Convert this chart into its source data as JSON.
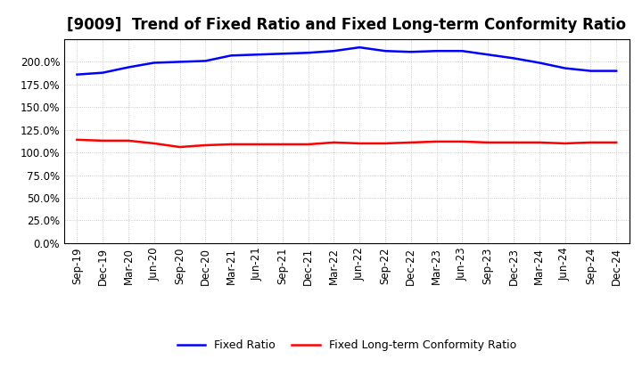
{
  "title": "[9009]  Trend of Fixed Ratio and Fixed Long-term Conformity Ratio",
  "x_labels": [
    "Sep-19",
    "Dec-19",
    "Mar-20",
    "Jun-20",
    "Sep-20",
    "Dec-20",
    "Mar-21",
    "Jun-21",
    "Sep-21",
    "Dec-21",
    "Mar-22",
    "Jun-22",
    "Sep-22",
    "Dec-22",
    "Mar-23",
    "Jun-23",
    "Sep-23",
    "Dec-23",
    "Mar-24",
    "Jun-24",
    "Sep-24",
    "Dec-24"
  ],
  "fixed_ratio": [
    186,
    188,
    194,
    199,
    200,
    201,
    207,
    208,
    209,
    210,
    212,
    216,
    212,
    211,
    212,
    212,
    208,
    204,
    199,
    193,
    190,
    190
  ],
  "fixed_lt_ratio": [
    114,
    113,
    113,
    110,
    106,
    108,
    109,
    109,
    109,
    109,
    111,
    110,
    110,
    111,
    112,
    112,
    111,
    111,
    111,
    110,
    111,
    111
  ],
  "ylim": [
    0,
    225
  ],
  "yticks": [
    0,
    25,
    50,
    75,
    100,
    125,
    150,
    175,
    200
  ],
  "line_color_fixed": "#0000FF",
  "line_color_fixed_lt": "#FF0000",
  "background_color": "#FFFFFF",
  "grid_color": "#BBBBBB",
  "legend_fixed": "Fixed Ratio",
  "legend_fixed_lt": "Fixed Long-term Conformity Ratio",
  "title_fontsize": 12,
  "axis_fontsize": 8.5
}
